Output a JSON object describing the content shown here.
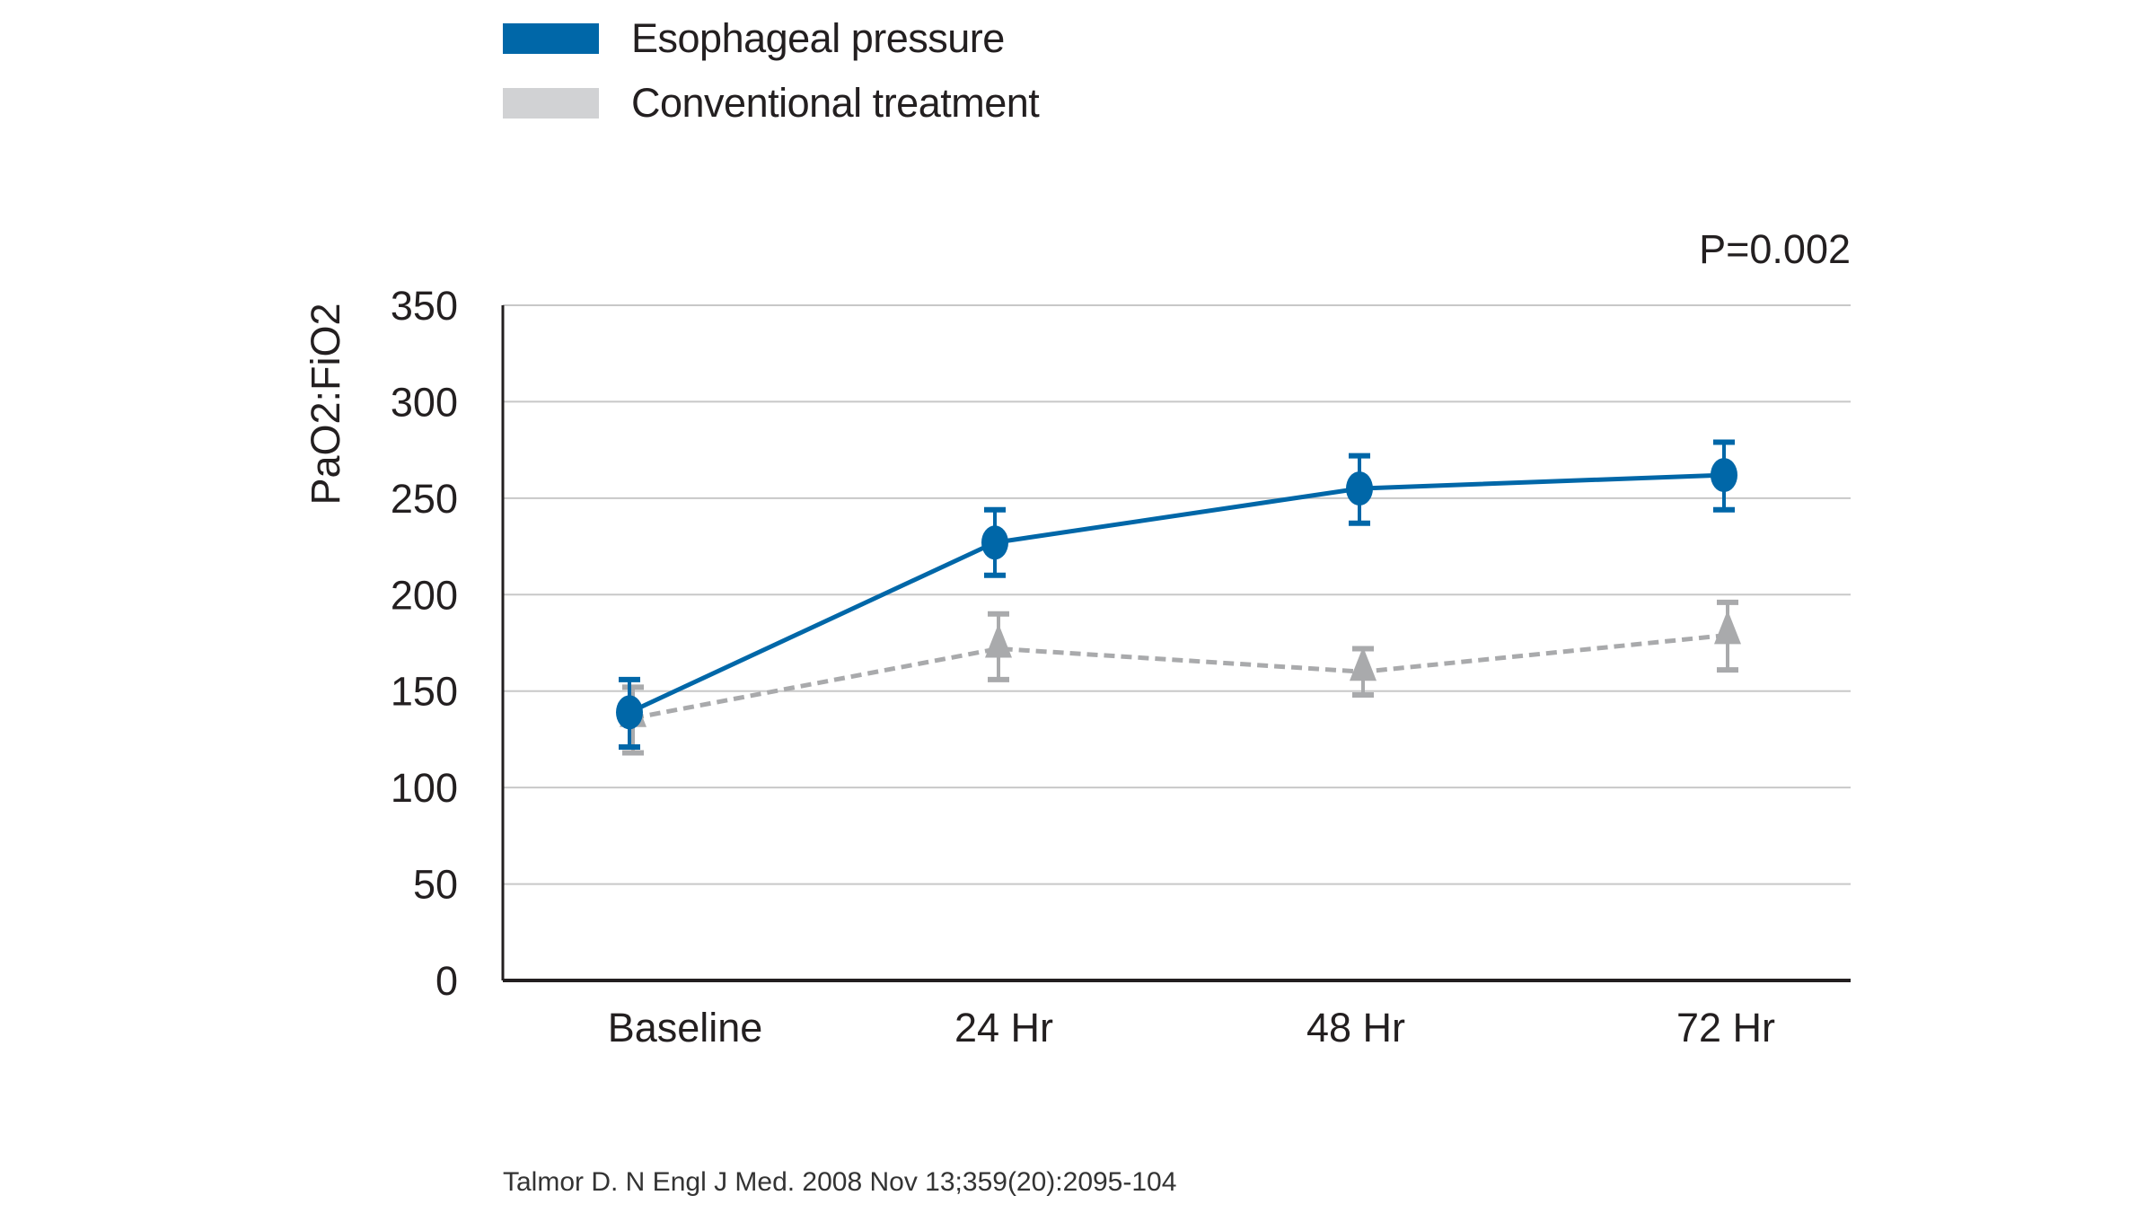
{
  "chart_data": {
    "type": "line",
    "title": "",
    "xlabel": "",
    "ylabel": "PaO2:FiO2",
    "categories": [
      "Baseline",
      "24 Hr",
      "48 Hr",
      "72 Hr"
    ],
    "ylim": [
      0,
      350
    ],
    "yticks": [
      0,
      50,
      100,
      150,
      200,
      250,
      300,
      350
    ],
    "grid": true,
    "legend_position": "top-left",
    "annotation": "P=0.002",
    "series": [
      {
        "name": "Esophageal pressure",
        "color": "#0067a8",
        "marker": "circle",
        "line": "solid",
        "values": [
          139,
          227,
          255,
          262
        ],
        "error_low": [
          121,
          210,
          237,
          244
        ],
        "error_high": [
          156,
          244,
          272,
          279
        ]
      },
      {
        "name": "Conventional treatment",
        "color": "#a9aaac",
        "legend_color": "#d1d2d4",
        "marker": "triangle",
        "line": "dashed",
        "values": [
          136,
          172,
          160,
          179
        ],
        "error_low": [
          118,
          156,
          148,
          161
        ],
        "error_high": [
          152,
          190,
          172,
          196
        ]
      }
    ]
  },
  "citation": "Talmor D. N Engl J Med. 2008 Nov 13;359(20):2095-104"
}
